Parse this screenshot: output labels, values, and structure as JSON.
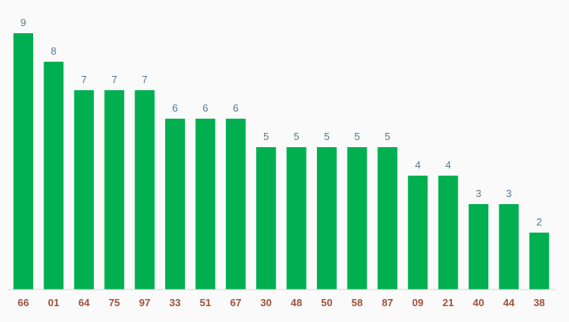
{
  "chart_data": {
    "type": "bar",
    "title": "",
    "xlabel": "",
    "ylabel": "",
    "categories": [
      "66",
      "01",
      "64",
      "75",
      "97",
      "33",
      "51",
      "67",
      "30",
      "48",
      "50",
      "58",
      "87",
      "09",
      "21",
      "40",
      "44",
      "38"
    ],
    "values": [
      9,
      8,
      7,
      7,
      7,
      6,
      6,
      6,
      5,
      5,
      5,
      5,
      5,
      4,
      4,
      3,
      3,
      2
    ],
    "ylim": [
      0,
      9
    ],
    "grid": false,
    "data_labels": true,
    "colors": {
      "bar": "#00b050",
      "value_label": "#5a7890",
      "category_label": "#a0523d"
    }
  }
}
